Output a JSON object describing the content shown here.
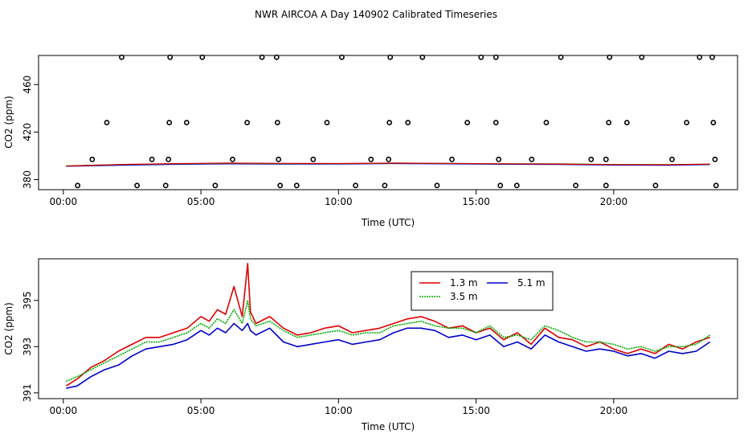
{
  "title": "NWR AIRCOA A  Day 140902  Calibrated Timeseries",
  "chart_data": [
    {
      "type": "scatter",
      "xlabel": "Time (UTC)",
      "ylabel": "CO2 (ppm)",
      "xlim": [
        -0.9,
        24.5
      ],
      "ylim": [
        371.5,
        484.5
      ],
      "xticks": [
        0,
        5,
        10,
        15,
        20
      ],
      "xtick_labels": [
        "00:00",
        "05:00",
        "10:00",
        "15:00",
        "20:00"
      ],
      "yticks": [
        380,
        420,
        460
      ],
      "grid": false,
      "series": [
        {
          "name": "",
          "marker": "open-circle",
          "color": "#000000",
          "points": [
            [
              0.52,
              375.0
            ],
            [
              2.68,
              375.0
            ],
            [
              3.72,
              375.0
            ],
            [
              5.52,
              375.0
            ],
            [
              7.88,
              375.0
            ],
            [
              8.48,
              375.0
            ],
            [
              10.62,
              375.0
            ],
            [
              11.68,
              375.0
            ],
            [
              13.58,
              375.0
            ],
            [
              15.88,
              375.0
            ],
            [
              16.48,
              375.0
            ],
            [
              18.62,
              375.0
            ],
            [
              19.72,
              375.0
            ],
            [
              21.52,
              375.0
            ],
            [
              23.72,
              375.0
            ],
            [
              1.05,
              397.0
            ],
            [
              3.22,
              397.0
            ],
            [
              3.82,
              397.0
            ],
            [
              6.15,
              397.0
            ],
            [
              7.82,
              397.0
            ],
            [
              9.08,
              397.0
            ],
            [
              11.18,
              397.0
            ],
            [
              11.82,
              397.0
            ],
            [
              14.12,
              397.0
            ],
            [
              15.82,
              397.0
            ],
            [
              17.02,
              397.0
            ],
            [
              19.18,
              397.0
            ],
            [
              19.72,
              397.0
            ],
            [
              22.12,
              397.0
            ],
            [
              23.68,
              397.0
            ],
            [
              1.58,
              428.0
            ],
            [
              3.85,
              428.0
            ],
            [
              4.48,
              428.0
            ],
            [
              6.68,
              428.0
            ],
            [
              7.78,
              428.0
            ],
            [
              9.58,
              428.0
            ],
            [
              11.85,
              428.0
            ],
            [
              12.52,
              428.0
            ],
            [
              14.68,
              428.0
            ],
            [
              15.72,
              428.0
            ],
            [
              17.55,
              428.0
            ],
            [
              19.82,
              428.0
            ],
            [
              20.48,
              428.0
            ],
            [
              22.65,
              428.0
            ],
            [
              23.62,
              428.0
            ],
            [
              2.12,
              483.0
            ],
            [
              3.88,
              483.0
            ],
            [
              5.05,
              483.0
            ],
            [
              7.22,
              483.0
            ],
            [
              7.75,
              483.0
            ],
            [
              10.12,
              483.0
            ],
            [
              11.88,
              483.0
            ],
            [
              13.05,
              483.0
            ],
            [
              15.18,
              483.0
            ],
            [
              15.72,
              483.0
            ],
            [
              18.08,
              483.0
            ],
            [
              19.85,
              483.0
            ],
            [
              21.02,
              483.0
            ],
            [
              23.12,
              483.0
            ],
            [
              23.58,
              483.0
            ]
          ]
        },
        {
          "name": "5.1 m",
          "color": "#0000cc",
          "x": [
            0.1,
            2,
            4,
            6,
            8,
            10,
            12,
            14,
            16,
            18,
            20,
            22,
            23.5
          ],
          "values": [
            391.2,
            392.1,
            392.8,
            393.2,
            393.1,
            393.0,
            393.5,
            393.2,
            392.9,
            392.7,
            392.2,
            392.1,
            392.6
          ]
        },
        {
          "name": "3.5 m",
          "color": "#00aa00",
          "x": [
            0.1,
            2,
            4,
            6,
            8,
            10,
            12,
            14,
            16,
            18,
            20,
            22,
            23.5
          ],
          "values": [
            391.5,
            392.6,
            393.3,
            393.7,
            393.5,
            393.4,
            393.8,
            393.6,
            393.3,
            393.2,
            392.7,
            392.6,
            393.0
          ]
        },
        {
          "name": "1.3 m",
          "color": "#dd0000",
          "x": [
            0.1,
            2,
            4,
            6,
            8,
            10,
            12,
            14,
            16,
            18,
            20,
            22,
            23.5
          ],
          "values": [
            391.4,
            392.7,
            393.4,
            393.9,
            393.6,
            393.5,
            393.9,
            393.6,
            393.3,
            393.1,
            392.6,
            392.5,
            393.0
          ]
        }
      ]
    },
    {
      "type": "line",
      "xlabel": "Time (UTC)",
      "ylabel": "CO2 (ppm)",
      "xlim": [
        -0.9,
        24.5
      ],
      "ylim": [
        390.75,
        396.8
      ],
      "xticks": [
        0,
        5,
        10,
        15,
        20
      ],
      "xtick_labels": [
        "00:00",
        "05:00",
        "10:00",
        "15:00",
        "20:00"
      ],
      "yticks": [
        391,
        393,
        395
      ],
      "grid": false,
      "legend": {
        "position": "top-center",
        "entries": [
          {
            "name": "1.3 m",
            "color": "#dd0000",
            "style": "solid"
          },
          {
            "name": "5.1 m",
            "color": "#0000cc",
            "style": "solid"
          },
          {
            "name": "3.5 m",
            "color": "#00aa00",
            "style": "dotted"
          }
        ]
      },
      "series": [
        {
          "name": "1.3 m",
          "color": "#dd0000",
          "x": [
            0.1,
            0.5,
            1.0,
            1.5,
            2.0,
            2.5,
            3.0,
            3.5,
            4.0,
            4.5,
            5.0,
            5.3,
            5.6,
            5.9,
            6.2,
            6.5,
            6.7,
            6.8,
            7.0,
            7.5,
            8.0,
            8.5,
            9.0,
            9.5,
            10.0,
            10.5,
            11.0,
            11.5,
            12.0,
            12.5,
            13.0,
            13.5,
            14.0,
            14.5,
            15.0,
            15.5,
            16.0,
            16.5,
            17.0,
            17.5,
            18.0,
            18.5,
            19.0,
            19.5,
            20.0,
            20.5,
            21.0,
            21.5,
            22.0,
            22.5,
            23.0,
            23.5
          ],
          "values": [
            391.3,
            391.6,
            392.1,
            392.4,
            392.8,
            393.1,
            393.4,
            393.4,
            393.6,
            393.8,
            394.3,
            394.1,
            394.6,
            394.4,
            395.6,
            394.3,
            396.6,
            394.5,
            394.0,
            394.3,
            393.8,
            393.5,
            393.6,
            393.8,
            393.9,
            393.6,
            393.7,
            393.8,
            394.0,
            394.2,
            394.3,
            394.1,
            393.8,
            393.9,
            393.6,
            393.8,
            393.3,
            393.6,
            393.1,
            393.8,
            393.4,
            393.3,
            393.0,
            393.2,
            392.9,
            392.7,
            392.9,
            392.7,
            393.1,
            392.9,
            393.2,
            393.4
          ]
        },
        {
          "name": "3.5 m",
          "color": "#00aa00",
          "x": [
            0.1,
            0.5,
            1.0,
            1.5,
            2.0,
            2.5,
            3.0,
            3.5,
            4.0,
            4.5,
            5.0,
            5.3,
            5.6,
            5.9,
            6.2,
            6.5,
            6.7,
            6.8,
            7.0,
            7.5,
            8.0,
            8.5,
            9.0,
            9.5,
            10.0,
            10.5,
            11.0,
            11.5,
            12.0,
            12.5,
            13.0,
            13.5,
            14.0,
            14.5,
            15.0,
            15.5,
            16.0,
            16.5,
            17.0,
            17.5,
            18.0,
            18.5,
            19.0,
            19.5,
            20.0,
            20.5,
            21.0,
            21.5,
            22.0,
            22.5,
            23.0,
            23.5
          ],
          "values": [
            391.5,
            391.7,
            392.0,
            392.3,
            392.6,
            392.9,
            393.2,
            393.2,
            393.4,
            393.6,
            394.0,
            393.8,
            394.2,
            394.0,
            394.6,
            394.0,
            395.0,
            394.2,
            393.9,
            394.1,
            393.7,
            393.4,
            393.5,
            393.6,
            393.7,
            393.5,
            393.6,
            393.6,
            393.9,
            394.0,
            394.1,
            393.9,
            393.8,
            393.8,
            393.6,
            393.9,
            393.4,
            393.5,
            393.3,
            393.9,
            393.7,
            393.4,
            393.2,
            393.2,
            393.1,
            392.9,
            393.0,
            392.8,
            393.0,
            393.0,
            393.1,
            393.5
          ]
        },
        {
          "name": "5.1 m",
          "color": "#0000cc",
          "x": [
            0.1,
            0.5,
            1.0,
            1.5,
            2.0,
            2.5,
            3.0,
            3.5,
            4.0,
            4.5,
            5.0,
            5.3,
            5.6,
            5.9,
            6.2,
            6.5,
            6.7,
            6.8,
            7.0,
            7.5,
            8.0,
            8.5,
            9.0,
            9.5,
            10.0,
            10.5,
            11.0,
            11.5,
            12.0,
            12.5,
            13.0,
            13.5,
            14.0,
            14.5,
            15.0,
            15.5,
            16.0,
            16.5,
            17.0,
            17.5,
            18.0,
            18.5,
            19.0,
            19.5,
            20.0,
            20.5,
            21.0,
            21.5,
            22.0,
            22.5,
            23.0,
            23.5
          ],
          "values": [
            391.2,
            391.3,
            391.7,
            392.0,
            392.2,
            392.6,
            392.9,
            393.0,
            393.1,
            393.3,
            393.7,
            393.5,
            393.8,
            393.6,
            394.0,
            393.7,
            394.0,
            393.7,
            393.5,
            393.8,
            393.2,
            393.0,
            393.1,
            393.2,
            393.3,
            393.1,
            393.2,
            393.3,
            393.6,
            393.8,
            393.8,
            393.7,
            393.4,
            393.5,
            393.3,
            393.5,
            393.0,
            393.2,
            392.9,
            393.5,
            393.2,
            393.0,
            392.8,
            392.9,
            392.8,
            392.6,
            392.7,
            392.5,
            392.8,
            392.7,
            392.8,
            393.2
          ]
        }
      ]
    }
  ]
}
